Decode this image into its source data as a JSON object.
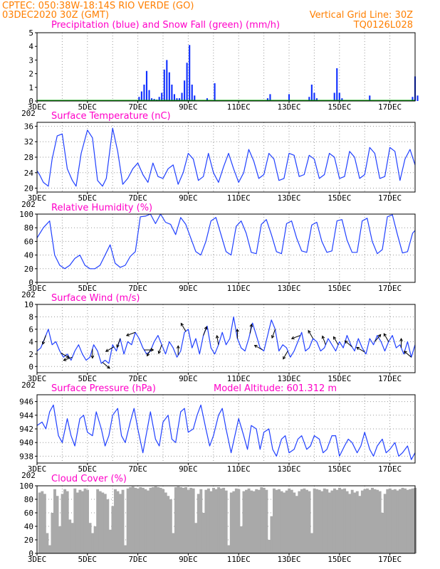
{
  "header": {
    "station_line": "CPTEC:   050:38W-18:14S   RIO VERDE (GO)",
    "run_line": "03DEC2020 30Z (GMT)",
    "grid_note": "Vertical Grid Line: 30Z",
    "product_code": "TQ0126L028"
  },
  "x_axis": {
    "labels": [
      "3DEC",
      "5DEC",
      "7DEC",
      "9DEC",
      "11DEC",
      "13DEC",
      "15DEC",
      "17DEC"
    ],
    "label_positions": [
      0,
      2,
      4,
      6,
      8,
      10,
      12,
      14
    ],
    "range_days": [
      0,
      15
    ],
    "corner_label": "202"
  },
  "colors": {
    "header": "#ff7f00",
    "panel_title": "#ff00c8",
    "line": "#2040ff",
    "precip": "#1030ff",
    "snow": "#00a000",
    "cloud": "#a9a9a9",
    "wind_arrow": "#000000"
  },
  "chart_data": [
    {
      "id": "precip",
      "type": "bar",
      "title": "Precipitation (blue) and Snow Fall (green) (mm/h)",
      "ylim": [
        0,
        5
      ],
      "yticks": [
        0,
        1,
        2,
        3,
        4,
        5
      ],
      "bar_width_days": 0.06,
      "x": [
        4.05,
        4.15,
        4.25,
        4.35,
        4.45,
        4.55,
        4.65,
        4.75,
        4.85,
        4.95,
        5.05,
        5.15,
        5.25,
        5.35,
        5.45,
        5.55,
        5.65,
        5.75,
        5.85,
        5.95,
        6.05,
        6.15,
        6.25,
        6.75,
        7.05,
        9.15,
        9.25,
        10.0,
        10.8,
        10.9,
        11.0,
        11.1,
        11.8,
        11.9,
        12.0,
        12.1,
        13.2,
        14.9,
        15.0,
        15.1
      ],
      "values": [
        0.3,
        0.7,
        1.2,
        2.2,
        0.8,
        0.2,
        0.15,
        0.1,
        0.3,
        0.6,
        2.3,
        3.0,
        2.1,
        1.2,
        0.5,
        0.2,
        0.2,
        0.6,
        1.5,
        2.8,
        4.1,
        1.2,
        0.4,
        0.2,
        1.3,
        0.2,
        0.5,
        0.5,
        0.3,
        1.2,
        0.6,
        0.2,
        0.6,
        2.4,
        0.6,
        0.2,
        0.4,
        0.3,
        1.8,
        0.4
      ],
      "snow": 0
    },
    {
      "id": "temperature",
      "type": "line",
      "title": "Surface Temperature (nC)",
      "ylim": [
        19,
        37
      ],
      "yticks": [
        20,
        24,
        28,
        32,
        36
      ],
      "x": [
        0,
        0.1,
        0.25,
        0.45,
        0.6,
        0.8,
        1.0,
        1.2,
        1.4,
        1.55,
        1.75,
        2.0,
        2.2,
        2.4,
        2.6,
        2.75,
        3.0,
        3.2,
        3.4,
        3.6,
        3.8,
        4.0,
        4.2,
        4.4,
        4.6,
        4.8,
        5.0,
        5.2,
        5.4,
        5.6,
        5.8,
        6.0,
        6.2,
        6.4,
        6.6,
        6.8,
        7.0,
        7.2,
        7.4,
        7.6,
        7.8,
        8.0,
        8.2,
        8.4,
        8.6,
        8.8,
        9.0,
        9.2,
        9.4,
        9.6,
        9.8,
        10.0,
        10.2,
        10.4,
        10.6,
        10.8,
        11.0,
        11.2,
        11.4,
        11.6,
        11.8,
        12.0,
        12.2,
        12.4,
        12.6,
        12.8,
        13.0,
        13.2,
        13.4,
        13.6,
        13.8,
        14.0,
        14.2,
        14.4,
        14.6,
        14.8,
        15.0
      ],
      "values": [
        24.5,
        23.5,
        21.5,
        20.5,
        27.5,
        33.5,
        34.0,
        25.0,
        22.0,
        20.5,
        29.0,
        35.0,
        33.0,
        22.0,
        20.5,
        22.5,
        35.5,
        29.5,
        21.0,
        22.5,
        25.0,
        26.5,
        23.5,
        21.5,
        26.5,
        23.0,
        22.5,
        25.0,
        26.0,
        21.0,
        24.0,
        29.0,
        27.5,
        22.0,
        23.0,
        29.0,
        24.0,
        21.5,
        25.5,
        29.0,
        25.0,
        21.5,
        24.0,
        30.0,
        27.0,
        22.5,
        23.5,
        29.0,
        27.5,
        22.0,
        22.5,
        29.0,
        28.5,
        23.0,
        23.5,
        28.5,
        27.5,
        22.5,
        23.5,
        29.0,
        28.0,
        22.5,
        23.0,
        29.5,
        28.0,
        22.5,
        23.5,
        30.5,
        29.0,
        22.5,
        23.0,
        30.5,
        29.5,
        22.0,
        27.5,
        30.0,
        26.0
      ],
      "grid": true
    },
    {
      "id": "humidity",
      "type": "line",
      "title": "Relative Humidity (%)",
      "ylim": [
        0,
        100
      ],
      "yticks": [
        0,
        20,
        40,
        60,
        80,
        100
      ],
      "x": [
        0,
        0.25,
        0.5,
        0.7,
        0.9,
        1.1,
        1.3,
        1.5,
        1.7,
        1.9,
        2.1,
        2.3,
        2.5,
        2.7,
        2.9,
        3.1,
        3.3,
        3.5,
        3.7,
        3.9,
        4.1,
        4.3,
        4.5,
        4.7,
        4.9,
        5.1,
        5.3,
        5.5,
        5.7,
        5.9,
        6.1,
        6.3,
        6.5,
        6.7,
        6.9,
        7.1,
        7.3,
        7.5,
        7.7,
        7.9,
        8.1,
        8.3,
        8.5,
        8.7,
        8.9,
        9.1,
        9.3,
        9.5,
        9.7,
        9.9,
        10.1,
        10.3,
        10.5,
        10.7,
        10.9,
        11.1,
        11.3,
        11.5,
        11.7,
        11.9,
        12.1,
        12.3,
        12.5,
        12.7,
        12.9,
        13.1,
        13.3,
        13.5,
        13.7,
        13.9,
        14.1,
        14.3,
        14.5,
        14.7,
        14.9,
        15.0
      ],
      "values": [
        65,
        80,
        90,
        40,
        25,
        20,
        25,
        35,
        40,
        25,
        20,
        20,
        25,
        40,
        55,
        28,
        22,
        25,
        38,
        45,
        96,
        97,
        100,
        86,
        100,
        88,
        85,
        70,
        95,
        85,
        65,
        45,
        40,
        60,
        90,
        95,
        70,
        45,
        40,
        82,
        90,
        72,
        44,
        42,
        85,
        92,
        70,
        45,
        42,
        86,
        90,
        65,
        46,
        44,
        84,
        88,
        60,
        44,
        46,
        90,
        92,
        62,
        44,
        44,
        90,
        94,
        60,
        42,
        48,
        96,
        99,
        70,
        43,
        45,
        72,
        76
      ],
      "grid": true
    },
    {
      "id": "wind",
      "type": "line",
      "title": "Surface Wind (m/s)",
      "ylim": [
        -1,
        10
      ],
      "yticks": [
        0,
        2,
        4,
        6,
        8,
        10
      ],
      "x": [
        0,
        0.15,
        0.3,
        0.45,
        0.6,
        0.75,
        0.9,
        1.05,
        1.2,
        1.35,
        1.5,
        1.65,
        1.8,
        1.95,
        2.1,
        2.25,
        2.4,
        2.55,
        2.7,
        2.85,
        3.0,
        3.15,
        3.3,
        3.45,
        3.6,
        3.75,
        3.9,
        4.05,
        4.2,
        4.35,
        4.5,
        4.65,
        4.8,
        4.95,
        5.1,
        5.25,
        5.4,
        5.55,
        5.7,
        5.85,
        6.0,
        6.15,
        6.3,
        6.45,
        6.6,
        6.75,
        6.9,
        7.05,
        7.2,
        7.35,
        7.5,
        7.65,
        7.8,
        7.95,
        8.1,
        8.25,
        8.4,
        8.55,
        8.7,
        8.85,
        9.0,
        9.15,
        9.3,
        9.45,
        9.6,
        9.75,
        9.9,
        10.05,
        10.2,
        10.35,
        10.5,
        10.65,
        10.8,
        10.95,
        11.1,
        11.25,
        11.4,
        11.55,
        11.7,
        11.85,
        12.0,
        12.15,
        12.3,
        12.45,
        12.6,
        12.75,
        12.9,
        13.05,
        13.2,
        13.35,
        13.5,
        13.65,
        13.8,
        13.95,
        14.1,
        14.25,
        14.4,
        14.55,
        14.7,
        14.85,
        15.0
      ],
      "values": [
        2.5,
        3.0,
        4.5,
        6.0,
        3.5,
        4.0,
        2.5,
        1.5,
        2.0,
        1.0,
        2.5,
        3.5,
        2.0,
        1.0,
        1.5,
        3.5,
        2.5,
        0.5,
        1.0,
        0.5,
        3.5,
        2.5,
        4.5,
        2.0,
        4.0,
        3.5,
        5.5,
        4.5,
        3.0,
        2.0,
        2.5,
        4.0,
        5.0,
        3.5,
        2.0,
        4.0,
        3.0,
        1.5,
        2.5,
        5.5,
        6.0,
        3.0,
        4.5,
        2.0,
        5.0,
        6.5,
        3.0,
        2.0,
        3.5,
        5.5,
        3.5,
        4.5,
        8.0,
        4.5,
        3.0,
        2.5,
        4.5,
        7.0,
        5.0,
        3.0,
        2.5,
        5.0,
        7.5,
        6.0,
        2.5,
        3.5,
        3.0,
        1.5,
        2.5,
        4.0,
        5.5,
        2.5,
        3.0,
        4.5,
        4.0,
        2.5,
        3.0,
        4.5,
        3.5,
        2.5,
        4.0,
        3.0,
        5.0,
        3.5,
        2.5,
        4.5,
        3.0,
        2.0,
        4.5,
        3.5,
        5.0,
        4.0,
        2.5,
        4.0,
        5.0,
        3.0,
        3.5,
        2.0,
        4.0,
        1.5,
        3.5
      ],
      "arrows": [
        {
          "x": 0.35,
          "dir_deg": 200
        },
        {
          "x": 0.95,
          "dir_deg": 120
        },
        {
          "x": 1.4,
          "dir_deg": 250
        },
        {
          "x": 2.2,
          "dir_deg": 180
        },
        {
          "x": 2.6,
          "dir_deg": 130
        },
        {
          "x": 3.05,
          "dir_deg": 240
        },
        {
          "x": 3.3,
          "dir_deg": 200
        },
        {
          "x": 3.9,
          "dir_deg": 250
        },
        {
          "x": 4.25,
          "dir_deg": 90
        },
        {
          "x": 4.55,
          "dir_deg": 210
        },
        {
          "x": 4.95,
          "dir_deg": 200
        },
        {
          "x": 5.6,
          "dir_deg": 0
        },
        {
          "x": 5.9,
          "dir_deg": 330
        },
        {
          "x": 6.6,
          "dir_deg": 20
        },
        {
          "x": 7.2,
          "dir_deg": 350
        },
        {
          "x": 7.95,
          "dir_deg": 0
        },
        {
          "x": 8.45,
          "dir_deg": 10
        },
        {
          "x": 8.95,
          "dir_deg": 300
        },
        {
          "x": 9.45,
          "dir_deg": 200
        },
        {
          "x": 9.95,
          "dir_deg": 210
        },
        {
          "x": 10.45,
          "dir_deg": 250
        },
        {
          "x": 10.95,
          "dir_deg": 330
        },
        {
          "x": 11.45,
          "dir_deg": 340
        },
        {
          "x": 11.95,
          "dir_deg": 330
        },
        {
          "x": 12.5,
          "dir_deg": 310
        },
        {
          "x": 13.0,
          "dir_deg": 300
        },
        {
          "x": 13.4,
          "dir_deg": 40
        },
        {
          "x": 13.95,
          "dir_deg": 330
        },
        {
          "x": 14.45,
          "dir_deg": 0
        },
        {
          "x": 14.85,
          "dir_deg": 310
        }
      ],
      "grid": true
    },
    {
      "id": "pressure",
      "type": "line",
      "title": "Surface Pressure (hPa)",
      "annotation": "Model Altitude: 601.312  m",
      "ylim": [
        937,
        947
      ],
      "yticks": [
        938,
        940,
        942,
        944,
        946
      ],
      "x": [
        0,
        0.2,
        0.35,
        0.5,
        0.65,
        0.85,
        1.0,
        1.2,
        1.35,
        1.5,
        1.7,
        1.85,
        2.0,
        2.2,
        2.35,
        2.55,
        2.7,
        2.85,
        3.0,
        3.2,
        3.35,
        3.5,
        3.7,
        3.85,
        4.0,
        4.2,
        4.35,
        4.5,
        4.7,
        4.85,
        5.0,
        5.2,
        5.35,
        5.5,
        5.7,
        5.85,
        6.0,
        6.2,
        6.35,
        6.5,
        6.7,
        6.85,
        7.0,
        7.2,
        7.35,
        7.5,
        7.7,
        7.85,
        8.0,
        8.2,
        8.35,
        8.5,
        8.7,
        8.85,
        9.0,
        9.2,
        9.35,
        9.5,
        9.7,
        9.85,
        10.0,
        10.2,
        10.35,
        10.5,
        10.7,
        10.85,
        11.0,
        11.2,
        11.35,
        11.5,
        11.7,
        11.85,
        12.0,
        12.2,
        12.35,
        12.5,
        12.7,
        12.85,
        13.0,
        13.2,
        13.35,
        13.5,
        13.7,
        13.85,
        14.0,
        14.2,
        14.35,
        14.5,
        14.7,
        14.85,
        15.0
      ],
      "values": [
        942.5,
        943.0,
        942.0,
        944.5,
        945.5,
        941.0,
        940.0,
        943.5,
        941.0,
        939.5,
        943.5,
        944.0,
        941.5,
        941.0,
        944.5,
        942.0,
        939.5,
        941.0,
        944.0,
        945.0,
        941.0,
        940.0,
        943.0,
        945.0,
        942.0,
        938.5,
        941.5,
        944.5,
        940.5,
        939.5,
        943.0,
        944.0,
        940.5,
        940.0,
        944.5,
        945.0,
        941.5,
        942.0,
        944.0,
        945.5,
        942.0,
        939.5,
        941.0,
        944.0,
        945.0,
        942.0,
        938.5,
        941.0,
        943.5,
        941.0,
        939.0,
        942.5,
        942.0,
        939.0,
        941.5,
        942.0,
        939.0,
        938.0,
        940.5,
        941.0,
        938.5,
        939.0,
        940.5,
        941.0,
        939.0,
        939.5,
        941.0,
        940.5,
        938.5,
        939.0,
        941.0,
        941.0,
        938.0,
        939.5,
        940.5,
        940.0,
        938.5,
        939.5,
        941.5,
        939.0,
        938.0,
        939.5,
        940.5,
        938.5,
        939.0,
        940.0,
        938.0,
        938.5,
        939.5,
        937.5,
        938.5
      ],
      "grid": true
    },
    {
      "id": "cloud",
      "type": "area",
      "title": "Cloud Cover (%)",
      "ylim": [
        0,
        100
      ],
      "yticks": [
        0,
        20,
        40,
        60,
        80,
        100
      ],
      "x": [
        0,
        0.1,
        0.2,
        0.3,
        0.4,
        0.5,
        0.6,
        0.7,
        0.8,
        0.9,
        1.0,
        1.1,
        1.2,
        1.3,
        1.4,
        1.5,
        1.6,
        1.7,
        1.8,
        1.9,
        2.0,
        2.1,
        2.2,
        2.3,
        2.4,
        2.5,
        2.6,
        2.7,
        2.8,
        2.9,
        3.0,
        3.1,
        3.2,
        3.3,
        3.4,
        3.5,
        3.6,
        3.7,
        3.8,
        3.9,
        4.0,
        4.1,
        4.2,
        4.3,
        4.4,
        4.5,
        4.6,
        4.7,
        4.8,
        4.9,
        5.0,
        5.1,
        5.2,
        5.3,
        5.4,
        5.5,
        5.6,
        5.7,
        5.8,
        5.9,
        6.0,
        6.1,
        6.2,
        6.3,
        6.4,
        6.5,
        6.6,
        6.7,
        6.8,
        6.9,
        7.0,
        7.1,
        7.2,
        7.3,
        7.4,
        7.5,
        7.6,
        7.7,
        7.8,
        7.9,
        8.0,
        8.1,
        8.2,
        8.3,
        8.4,
        8.5,
        8.6,
        8.7,
        8.8,
        8.9,
        9.0,
        9.1,
        9.2,
        9.3,
        9.4,
        9.5,
        9.6,
        9.7,
        9.8,
        9.9,
        10.0,
        10.1,
        10.2,
        10.3,
        10.4,
        10.5,
        10.6,
        10.7,
        10.8,
        10.9,
        11.0,
        11.1,
        11.2,
        11.3,
        11.4,
        11.5,
        11.6,
        11.7,
        11.8,
        11.9,
        12.0,
        12.1,
        12.2,
        12.3,
        12.4,
        12.5,
        12.6,
        12.7,
        12.8,
        12.9,
        13.0,
        13.1,
        13.2,
        13.3,
        13.4,
        13.5,
        13.6,
        13.7,
        13.8,
        13.9,
        14.0,
        14.1,
        14.2,
        14.3,
        14.4,
        14.5,
        14.6,
        14.7,
        14.8,
        14.9,
        15.0
      ],
      "values": [
        0,
        90,
        92,
        88,
        30,
        12,
        60,
        95,
        85,
        40,
        88,
        95,
        92,
        50,
        45,
        96,
        90,
        94,
        92,
        96,
        94,
        45,
        30,
        40,
        95,
        92,
        90,
        88,
        80,
        35,
        70,
        95,
        92,
        88,
        94,
        12,
        96,
        98,
        99,
        97,
        96,
        98,
        97,
        95,
        93,
        97,
        98,
        99,
        98,
        97,
        95,
        90,
        85,
        80,
        30,
        98,
        99,
        98,
        97,
        98,
        94,
        97,
        96,
        45,
        88,
        95,
        60,
        94,
        96,
        92,
        97,
        95,
        98,
        96,
        97,
        93,
        12,
        90,
        92,
        96,
        95,
        40,
        92,
        94,
        96,
        93,
        92,
        95,
        94,
        98,
        97,
        94,
        20,
        55,
        96,
        94,
        95,
        92,
        90,
        93,
        96,
        94,
        90,
        85,
        92,
        95,
        96,
        94,
        92,
        30,
        96,
        95,
        94,
        92,
        96,
        95,
        90,
        93,
        96,
        94,
        97,
        95,
        96,
        92,
        88,
        94,
        90,
        92,
        85,
        93,
        95,
        96,
        94,
        97,
        95,
        94,
        92,
        60,
        88,
        95,
        96,
        94,
        95,
        93,
        95,
        97,
        96,
        94,
        95,
        96,
        97
      ],
      "grid": true
    }
  ]
}
